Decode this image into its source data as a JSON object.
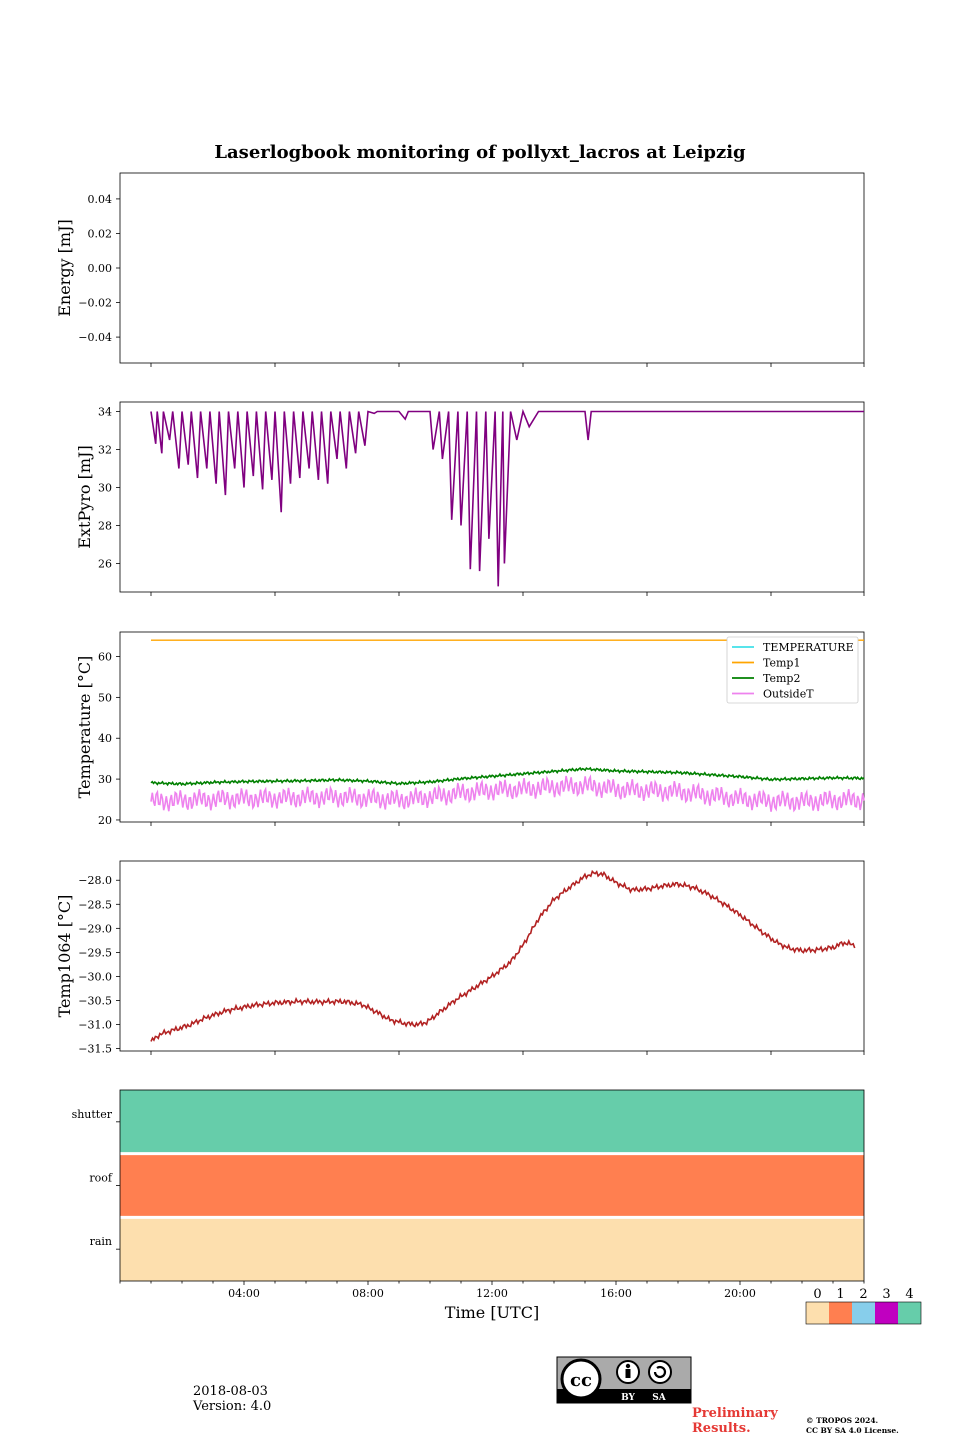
{
  "chart_data": [
    {
      "type": "line",
      "title": "Laserlogbook monitoring of pollyxt_lacros at Leipzig",
      "ylabel": "Energy [mJ]",
      "ylim": [
        -0.055,
        0.055
      ],
      "yticks": [
        0.04,
        0.02,
        0.0,
        -0.02,
        -0.04
      ],
      "ytick_labels": [
        "0.04",
        "0.02",
        "0.00",
        "−0.02",
        "−0.04"
      ],
      "xlim": [
        0,
        24
      ],
      "series": []
    },
    {
      "type": "line",
      "ylabel": "ExtPyro [mJ]",
      "ylim": [
        24.5,
        34.5
      ],
      "yticks": [
        34,
        32,
        30,
        28,
        26
      ],
      "ytick_labels": [
        "34",
        "32",
        "30",
        "28",
        "26"
      ],
      "xlim": [
        0,
        24
      ],
      "series": [
        {
          "name": "ExtPyro",
          "color": "#800080",
          "x": [
            1.0,
            1.15,
            1.2,
            1.35,
            1.4,
            1.6,
            1.7,
            1.9,
            2.0,
            2.2,
            2.3,
            2.5,
            2.6,
            2.8,
            2.9,
            3.1,
            3.2,
            3.4,
            3.5,
            3.7,
            3.8,
            4.0,
            4.1,
            4.3,
            4.4,
            4.6,
            4.7,
            4.9,
            5.0,
            5.2,
            5.3,
            5.5,
            5.6,
            5.8,
            5.9,
            6.1,
            6.2,
            6.4,
            6.5,
            6.7,
            6.8,
            7.0,
            7.1,
            7.3,
            7.4,
            7.6,
            7.7,
            7.9,
            8.0,
            8.2,
            8.3,
            9.0,
            9.2,
            9.3,
            10.0,
            10.1,
            10.3,
            10.4,
            10.6,
            10.7,
            10.9,
            11.0,
            11.2,
            11.3,
            11.5,
            11.6,
            11.8,
            11.9,
            12.1,
            12.2,
            12.35,
            12.4,
            12.6,
            12.8,
            13.0,
            13.2,
            13.5,
            14.0,
            14.5,
            15.0,
            15.1,
            15.2,
            16.0,
            18.0,
            20.0,
            22.0,
            24.0
          ],
          "y": [
            34,
            32.3,
            34,
            31.8,
            34,
            32.5,
            34,
            31.0,
            34,
            31.2,
            34,
            30.5,
            34,
            31.0,
            34,
            30.2,
            34,
            29.6,
            34,
            31.0,
            34,
            30.0,
            34,
            30.6,
            34,
            29.9,
            34,
            30.4,
            34,
            28.7,
            34,
            30.2,
            34,
            30.5,
            34,
            31.0,
            34,
            30.4,
            34,
            30.2,
            34,
            31.5,
            34,
            31.0,
            34,
            31.8,
            34,
            32.2,
            34,
            33.9,
            34,
            34,
            33.6,
            34,
            34,
            32.0,
            34,
            31.5,
            34,
            28.3,
            34,
            28.0,
            34,
            25.7,
            34,
            25.6,
            34,
            27.3,
            34,
            24.8,
            34,
            26.0,
            34,
            32.5,
            34,
            33.2,
            34,
            34,
            34,
            34,
            32.5,
            34,
            34,
            34,
            34,
            34,
            34
          ]
        }
      ]
    },
    {
      "type": "line",
      "ylabel": "Temperature [°C]",
      "ylim": [
        19.5,
        66
      ],
      "yticks": [
        60,
        50,
        40,
        30,
        20
      ],
      "ytick_labels": [
        "60",
        "50",
        "40",
        "30",
        "20"
      ],
      "xlim": [
        0,
        24
      ],
      "legend_position": "top-right",
      "legend": [
        "TEMPERATURE",
        "Temp1",
        "Temp2",
        "OutsideT"
      ],
      "series": [
        {
          "name": "TEMPERATURE",
          "color": "#40e0e8",
          "x": [],
          "y": []
        },
        {
          "name": "Temp1",
          "color": "#ffa500",
          "x": [
            1,
            24
          ],
          "y": [
            64.0,
            64.0
          ]
        },
        {
          "name": "Temp2",
          "color": "#008000",
          "x": [
            1,
            2,
            3,
            4,
            5,
            6,
            7,
            8,
            9,
            10,
            11,
            12,
            13,
            14,
            15,
            16,
            17,
            18,
            19,
            20,
            21,
            22,
            23,
            24
          ],
          "y": [
            29.1,
            28.8,
            29.2,
            29.4,
            29.5,
            29.6,
            29.8,
            29.5,
            28.9,
            29.3,
            30.1,
            30.7,
            31.3,
            31.9,
            32.5,
            32.0,
            31.8,
            31.6,
            31.1,
            30.6,
            29.9,
            30.1,
            30.3,
            30.2
          ]
        },
        {
          "name": "OutsideT",
          "color": "#ee82ee",
          "x": [
            1,
            2,
            3,
            4,
            5,
            6,
            7,
            8,
            9,
            10,
            11,
            12,
            13,
            14,
            15,
            16,
            17,
            18,
            19,
            20,
            21,
            22,
            23,
            24
          ],
          "y": [
            24.5,
            24.8,
            25.0,
            25.2,
            25.3,
            25.5,
            25.6,
            25.3,
            24.9,
            25.6,
            26.6,
            27.3,
            27.6,
            28.1,
            28.4,
            27.5,
            27.2,
            26.9,
            26.0,
            25.2,
            24.6,
            24.5,
            24.8,
            25.0
          ]
        }
      ]
    },
    {
      "type": "line",
      "ylabel": "Temp1064 [°C]",
      "ylim": [
        -31.55,
        -27.6
      ],
      "yticks": [
        -28.0,
        -28.5,
        -29.0,
        -29.5,
        -30.0,
        -30.5,
        -31.0,
        -31.5
      ],
      "ytick_labels": [
        "−28.0",
        "−28.5",
        "−29.0",
        "−29.5",
        "−30.0",
        "−30.5",
        "−31.0",
        "−31.5"
      ],
      "xlim": [
        0,
        24
      ],
      "series": [
        {
          "name": "Temp1064",
          "color": "#b22222",
          "x": [
            1.0,
            1.3,
            1.7,
            2.2,
            2.8,
            3.5,
            4.3,
            5.0,
            5.8,
            6.5,
            7.2,
            7.8,
            8.3,
            8.7,
            9.2,
            9.6,
            9.9,
            10.3,
            10.8,
            11.4,
            12.0,
            12.6,
            13.0,
            13.5,
            14.0,
            14.5,
            15.0,
            15.3,
            15.6,
            16.0,
            16.5,
            17.0,
            17.5,
            18.0,
            18.5,
            19.0,
            19.5,
            20.0,
            20.4,
            20.8,
            21.2,
            21.6,
            22.0,
            22.4,
            22.8,
            23.1,
            23.3,
            23.5,
            23.7
          ],
          "y": [
            -31.35,
            -31.2,
            -31.12,
            -31.02,
            -30.85,
            -30.7,
            -30.6,
            -30.55,
            -30.52,
            -30.53,
            -30.52,
            -30.58,
            -30.75,
            -30.9,
            -30.98,
            -31.0,
            -30.95,
            -30.75,
            -30.5,
            -30.25,
            -30.0,
            -29.7,
            -29.35,
            -28.8,
            -28.4,
            -28.15,
            -27.92,
            -27.85,
            -27.88,
            -28.05,
            -28.2,
            -28.18,
            -28.12,
            -28.08,
            -28.15,
            -28.3,
            -28.5,
            -28.72,
            -28.92,
            -29.12,
            -29.3,
            -29.42,
            -29.46,
            -29.45,
            -29.42,
            -29.38,
            -29.3,
            -29.32,
            -29.35
          ]
        }
      ]
    },
    {
      "type": "heatmap",
      "xlabel": "Time [UTC]",
      "xlim": [
        0,
        24
      ],
      "xticks": [
        4,
        8,
        12,
        16,
        20
      ],
      "xtick_labels": [
        "04:00",
        "08:00",
        "12:00",
        "16:00",
        "20:00"
      ],
      "rows": [
        "shutter",
        "roof",
        "rain"
      ],
      "row_values": [
        4,
        1,
        0
      ],
      "colorbar": {
        "ticks": [
          "0",
          "1",
          "2",
          "3",
          "4"
        ],
        "colors": [
          "#fddfae",
          "#ff7f50",
          "#87ceeb",
          "#c000c0",
          "#66cdaa"
        ]
      }
    }
  ],
  "footer": {
    "date": "2018-08-03",
    "version": "Version: 4.0",
    "preliminary": "Preliminary\nResults.",
    "copyright_line1": "© TROPOS 2024.",
    "copyright_line2": "CC BY SA 4.0 License.",
    "license_badge": {
      "by": "BY",
      "sa": "SA",
      "cc": "cc"
    }
  }
}
